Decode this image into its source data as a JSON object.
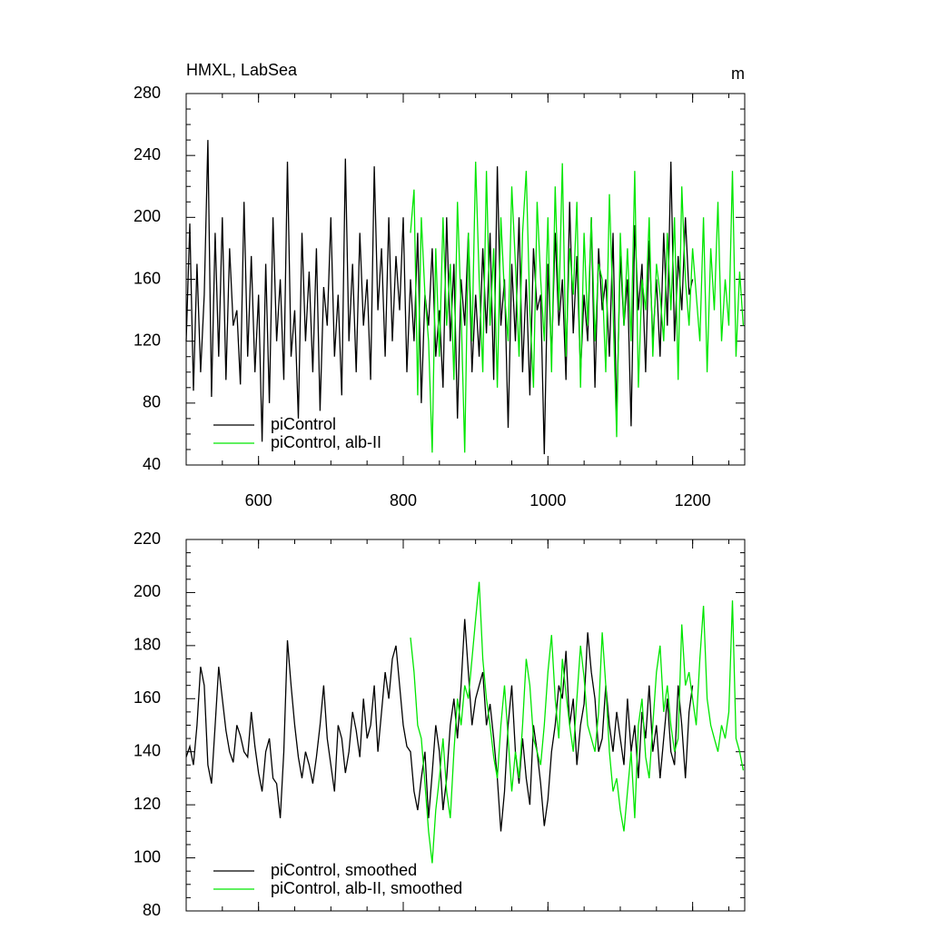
{
  "chart_data": [
    {
      "type": "line",
      "title": "HMXL, LabSea",
      "units": "m",
      "xlim": [
        500,
        1272
      ],
      "xticks": [
        600,
        800,
        1000,
        1200
      ],
      "ylim": [
        40,
        280
      ],
      "yticks": [
        40,
        80,
        120,
        160,
        200,
        240,
        280
      ],
      "legend": "lower left",
      "series": [
        {
          "name": "piControl",
          "color": "#000000",
          "x": [
            500,
            505,
            510,
            515,
            520,
            525,
            530,
            535,
            540,
            545,
            550,
            555,
            560,
            565,
            570,
            575,
            580,
            585,
            590,
            595,
            600,
            605,
            610,
            615,
            620,
            625,
            630,
            635,
            640,
            645,
            650,
            655,
            660,
            665,
            670,
            675,
            680,
            685,
            690,
            695,
            700,
            705,
            710,
            715,
            720,
            725,
            730,
            735,
            740,
            745,
            750,
            755,
            760,
            765,
            770,
            775,
            780,
            785,
            790,
            795,
            800,
            805,
            810,
            815,
            820,
            825,
            830,
            835,
            840,
            845,
            850,
            855,
            860,
            865,
            870,
            875,
            880,
            885,
            890,
            895,
            900,
            905,
            910,
            915,
            920,
            925,
            930,
            935,
            940,
            945,
            950,
            955,
            960,
            965,
            970,
            975,
            980,
            985,
            990,
            995,
            1000,
            1005,
            1010,
            1015,
            1020,
            1025,
            1030,
            1035,
            1040,
            1045,
            1050,
            1055,
            1060,
            1065,
            1070,
            1075,
            1080,
            1085,
            1090,
            1095,
            1100,
            1105,
            1110,
            1115,
            1120,
            1125,
            1130,
            1135,
            1140,
            1145,
            1150,
            1155,
            1160,
            1165,
            1170,
            1175,
            1180,
            1185,
            1190,
            1195,
            1200
          ],
          "values": [
            120,
            196,
            88,
            170,
            100,
            150,
            250,
            84,
            190,
            110,
            200,
            95,
            180,
            130,
            140,
            92,
            210,
            110,
            175,
            100,
            150,
            55,
            170,
            80,
            200,
            120,
            160,
            95,
            236,
            110,
            140,
            70,
            190,
            120,
            165,
            100,
            180,
            75,
            155,
            130,
            200,
            110,
            150,
            85,
            238,
            120,
            170,
            100,
            190,
            130,
            160,
            95,
            233,
            140,
            180,
            110,
            200,
            120,
            175,
            140,
            200,
            100,
            160,
            120,
            190,
            80,
            150,
            130,
            180,
            110,
            140,
            90,
            200,
            120,
            170,
            70,
            160,
            130,
            190,
            100,
            150,
            110,
            180,
            125,
            190,
            95,
            233,
            130,
            160,
            64,
            170,
            120,
            200,
            100,
            160,
            85,
            180,
            140,
            150,
            47,
            170,
            110,
            190,
            130,
            160,
            95,
            210,
            125,
            175,
            100,
            150,
            120,
            200,
            90,
            180,
            140,
            160,
            110,
            190,
            70,
            175,
            130,
            160,
            65,
            195,
            140,
            170,
            100,
            185,
            120,
            160,
            110,
            190,
            130,
            236,
            120,
            175,
            140,
            200,
            150,
            160
          ]
        },
        {
          "name": "piControl, alb-II",
          "color": "#00e600",
          "x": [
            810,
            815,
            820,
            825,
            830,
            835,
            840,
            845,
            850,
            855,
            860,
            865,
            870,
            875,
            880,
            885,
            890,
            895,
            900,
            905,
            910,
            915,
            920,
            925,
            930,
            935,
            940,
            945,
            950,
            955,
            960,
            965,
            970,
            975,
            980,
            985,
            990,
            995,
            1000,
            1005,
            1010,
            1015,
            1020,
            1025,
            1030,
            1035,
            1040,
            1045,
            1050,
            1055,
            1060,
            1065,
            1070,
            1075,
            1080,
            1085,
            1090,
            1095,
            1100,
            1105,
            1110,
            1115,
            1120,
            1125,
            1130,
            1135,
            1140,
            1145,
            1150,
            1155,
            1160,
            1165,
            1170,
            1175,
            1180,
            1185,
            1190,
            1195,
            1200,
            1205,
            1210,
            1215,
            1220,
            1225,
            1230,
            1235,
            1240,
            1245,
            1250,
            1255,
            1260,
            1265,
            1270
          ],
          "values": [
            190,
            218,
            85,
            200,
            150,
            120,
            48,
            180,
            110,
            200,
            130,
            170,
            95,
            210,
            140,
            48,
            190,
            120,
            236,
            160,
            100,
            230,
            130,
            180,
            90,
            200,
            150,
            120,
            220,
            170,
            110,
            190,
            230,
            140,
            90,
            210,
            160,
            120,
            200,
            100,
            220,
            140,
            235,
            110,
            180,
            150,
            210,
            90,
            190,
            130,
            200,
            120,
            170,
            160,
            100,
            215,
            140,
            58,
            190,
            130,
            180,
            120,
            230,
            90,
            160,
            140,
            200,
            110,
            170,
            150,
            120,
            190,
            140,
            200,
            95,
            220,
            160,
            130,
            180,
            150,
            120,
            200,
            100,
            180,
            140,
            210,
            120,
            160,
            130,
            230,
            110,
            165,
            130
          ]
        }
      ]
    },
    {
      "type": "line",
      "xlim": [
        500,
        1272
      ],
      "ylim": [
        80,
        220
      ],
      "yticks": [
        80,
        100,
        120,
        140,
        160,
        180,
        200,
        220
      ],
      "legend": "lower left",
      "series": [
        {
          "name": "piControl, smoothed",
          "color": "#000000",
          "x": [
            500,
            505,
            510,
            515,
            520,
            525,
            530,
            535,
            540,
            545,
            550,
            555,
            560,
            565,
            570,
            575,
            580,
            585,
            590,
            595,
            600,
            605,
            610,
            615,
            620,
            625,
            630,
            635,
            640,
            645,
            650,
            655,
            660,
            665,
            670,
            675,
            680,
            685,
            690,
            695,
            700,
            705,
            710,
            715,
            720,
            725,
            730,
            735,
            740,
            745,
            750,
            755,
            760,
            765,
            770,
            775,
            780,
            785,
            790,
            795,
            800,
            805,
            810,
            815,
            820,
            825,
            830,
            835,
            840,
            845,
            850,
            855,
            860,
            865,
            870,
            875,
            880,
            885,
            890,
            895,
            900,
            905,
            910,
            915,
            920,
            925,
            930,
            935,
            940,
            945,
            950,
            955,
            960,
            965,
            970,
            975,
            980,
            985,
            990,
            995,
            1000,
            1005,
            1010,
            1015,
            1020,
            1025,
            1030,
            1035,
            1040,
            1045,
            1050,
            1055,
            1060,
            1065,
            1070,
            1075,
            1080,
            1085,
            1090,
            1095,
            1100,
            1105,
            1110,
            1115,
            1120,
            1125,
            1130,
            1135,
            1140,
            1145,
            1150,
            1155,
            1160,
            1165,
            1170,
            1175,
            1180,
            1185,
            1190,
            1195,
            1200
          ],
          "values": [
            138,
            142,
            135,
            150,
            172,
            165,
            135,
            128,
            150,
            172,
            160,
            148,
            140,
            136,
            150,
            146,
            140,
            138,
            155,
            142,
            132,
            125,
            140,
            145,
            130,
            128,
            115,
            140,
            182,
            165,
            150,
            138,
            130,
            140,
            135,
            128,
            138,
            150,
            165,
            145,
            135,
            125,
            150,
            145,
            132,
            140,
            155,
            148,
            138,
            160,
            145,
            150,
            165,
            140,
            155,
            170,
            160,
            175,
            180,
            165,
            150,
            142,
            140,
            125,
            118,
            130,
            140,
            115,
            132,
            150,
            140,
            118,
            130,
            150,
            160,
            145,
            165,
            190,
            170,
            150,
            160,
            165,
            170,
            150,
            158,
            145,
            130,
            110,
            125,
            150,
            165,
            140,
            128,
            145,
            130,
            120,
            150,
            140,
            128,
            112,
            122,
            140,
            150,
            165,
            160,
            178,
            150,
            160,
            135,
            150,
            158,
            185,
            170,
            160,
            140,
            145,
            165,
            150,
            140,
            155,
            145,
            135,
            160,
            140,
            150,
            130,
            155,
            145,
            165,
            140,
            150,
            130,
            145,
            160,
            140,
            135,
            165,
            150,
            130,
            155,
            165
          ]
        },
        {
          "name": "piControl, alb-II, smoothed",
          "color": "#00e600",
          "x": [
            810,
            815,
            820,
            825,
            830,
            835,
            840,
            845,
            850,
            855,
            860,
            865,
            870,
            875,
            880,
            885,
            890,
            895,
            900,
            905,
            910,
            915,
            920,
            925,
            930,
            935,
            940,
            945,
            950,
            955,
            960,
            965,
            970,
            975,
            980,
            985,
            990,
            995,
            1000,
            1005,
            1010,
            1015,
            1020,
            1025,
            1030,
            1035,
            1040,
            1045,
            1050,
            1055,
            1060,
            1065,
            1070,
            1075,
            1080,
            1085,
            1090,
            1095,
            1100,
            1105,
            1110,
            1115,
            1120,
            1125,
            1130,
            1135,
            1140,
            1145,
            1150,
            1155,
            1160,
            1165,
            1170,
            1175,
            1180,
            1185,
            1190,
            1195,
            1200,
            1205,
            1210,
            1215,
            1220,
            1225,
            1230,
            1235,
            1240,
            1245,
            1250,
            1255,
            1260,
            1265,
            1270
          ],
          "values": [
            183,
            170,
            150,
            145,
            128,
            110,
            98,
            118,
            130,
            145,
            125,
            115,
            140,
            160,
            150,
            165,
            160,
            175,
            190,
            204,
            175,
            160,
            150,
            138,
            130,
            150,
            165,
            145,
            125,
            140,
            130,
            150,
            175,
            165,
            145,
            140,
            135,
            150,
            170,
            184,
            160,
            145,
            175,
            162,
            150,
            140,
            160,
            180,
            168,
            150,
            145,
            140,
            155,
            185,
            165,
            140,
            125,
            130,
            118,
            110,
            125,
            140,
            115,
            150,
            160,
            138,
            130,
            150,
            170,
            180,
            155,
            165,
            150,
            140,
            145,
            188,
            165,
            170,
            160,
            150,
            175,
            195,
            160,
            150,
            145,
            140,
            150,
            145,
            155,
            197,
            145,
            140,
            133
          ]
        }
      ]
    }
  ]
}
